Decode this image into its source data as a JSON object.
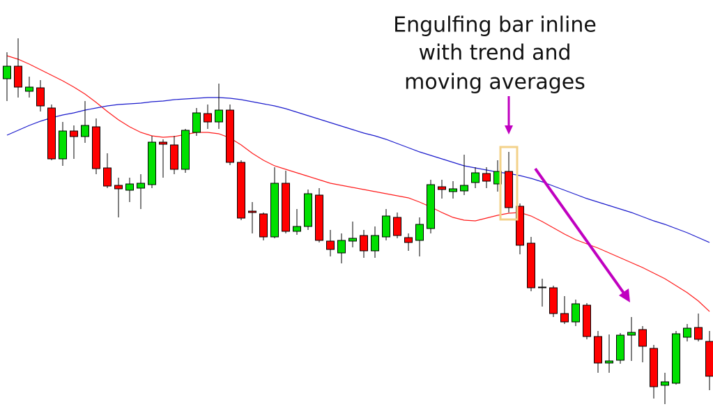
{
  "chart_data": {
    "type": "candlestick",
    "annotation": [
      "Engulfing bar inline",
      "with trend and",
      "moving averages"
    ],
    "up_color": "#00e000",
    "down_color": "#ff0000",
    "ylim": [
      0,
      587
    ],
    "open": [
      474,
      492,
      456,
      461,
      432,
      359,
      399,
      391,
      405,
      346,
      321,
      314,
      317,
      322,
      383,
      379,
      344,
      397,
      424,
      412,
      429,
      354,
      284,
      280,
      247,
      324,
      255,
      262,
      307,
      241,
      224,
      241,
      249,
      227,
      247,
      275,
      246,
      242,
      259,
      319,
      312,
      313,
      325,
      338,
      323,
      341,
      291,
      238,
      175,
      174,
      137,
      125,
      149,
      104,
      66,
      70,
      106,
      114,
      87,
      34,
      37,
      103,
      117,
      97
    ],
    "high": [
      512,
      532,
      477,
      472,
      437,
      412,
      407,
      442,
      417,
      367,
      332,
      332,
      337,
      392,
      387,
      392,
      402,
      432,
      437,
      467,
      437,
      357,
      297,
      282,
      347,
      342,
      287,
      315,
      317,
      257,
      252,
      269,
      257,
      262,
      287,
      282,
      252,
      275,
      329,
      329,
      327,
      365,
      347,
      347,
      357,
      369,
      295,
      247,
      187,
      177,
      162,
      157,
      152,
      112,
      107,
      109,
      132,
      119,
      92,
      52,
      112,
      122,
      137,
      112
    ],
    "low": [
      442,
      447,
      447,
      427,
      357,
      349,
      359,
      382,
      337,
      317,
      275,
      297,
      287,
      317,
      332,
      337,
      339,
      392,
      402,
      402,
      350,
      271,
      252,
      242,
      245,
      252,
      250,
      257,
      239,
      219,
      209,
      232,
      217,
      217,
      242,
      245,
      227,
      219,
      252,
      302,
      302,
      307,
      317,
      317,
      312,
      282,
      222,
      169,
      147,
      132,
      122,
      119,
      100,
      52,
      52,
      65,
      69,
      67,
      15,
      7,
      35,
      97,
      97,
      27
    ],
    "close": [
      492,
      462,
      462,
      435,
      359,
      399,
      391,
      407,
      345,
      320,
      316,
      323,
      324,
      383,
      380,
      344,
      400,
      425,
      412,
      429,
      354,
      274,
      282,
      247,
      324,
      255,
      262,
      309,
      242,
      229,
      242,
      245,
      227,
      249,
      277,
      249,
      239,
      265,
      322,
      315,
      316,
      321,
      339,
      327,
      341,
      289,
      235,
      174,
      174,
      137,
      125,
      151,
      104,
      66,
      69,
      106,
      110,
      90,
      32,
      39,
      108,
      116,
      100,
      47
    ],
    "series": [
      {
        "color": "#ff1a1a",
        "values": [
          507,
          502,
          495,
          487,
          479,
          471,
          462,
          452,
          440,
          427,
          415,
          405,
          397,
          392,
          390,
          391,
          394,
          397,
          397,
          395,
          389,
          379,
          367,
          357,
          349,
          344,
          339,
          334,
          329,
          324,
          321,
          318,
          315,
          312,
          309,
          306,
          303,
          297,
          290,
          282,
          275,
          271,
          270,
          274,
          278,
          281,
          282,
          277,
          269,
          260,
          251,
          243,
          237,
          231,
          224,
          217,
          210,
          203,
          195,
          187,
          177,
          167,
          155,
          140
        ]
      },
      {
        "color": "#1a1acc",
        "values": [
          393,
          400,
          407,
          413,
          418,
          422,
          425,
          429,
          432,
          435,
          437,
          438,
          439,
          441,
          442,
          444,
          445,
          446,
          447,
          447,
          446,
          444,
          441,
          438,
          435,
          431,
          426,
          421,
          416,
          411,
          406,
          401,
          396,
          392,
          387,
          381,
          375,
          369,
          364,
          359,
          354,
          349,
          346,
          343,
          340,
          338,
          335,
          331,
          326,
          320,
          314,
          308,
          302,
          297,
          292,
          287,
          282,
          276,
          270,
          265,
          259,
          253,
          246,
          239
        ]
      }
    ]
  }
}
